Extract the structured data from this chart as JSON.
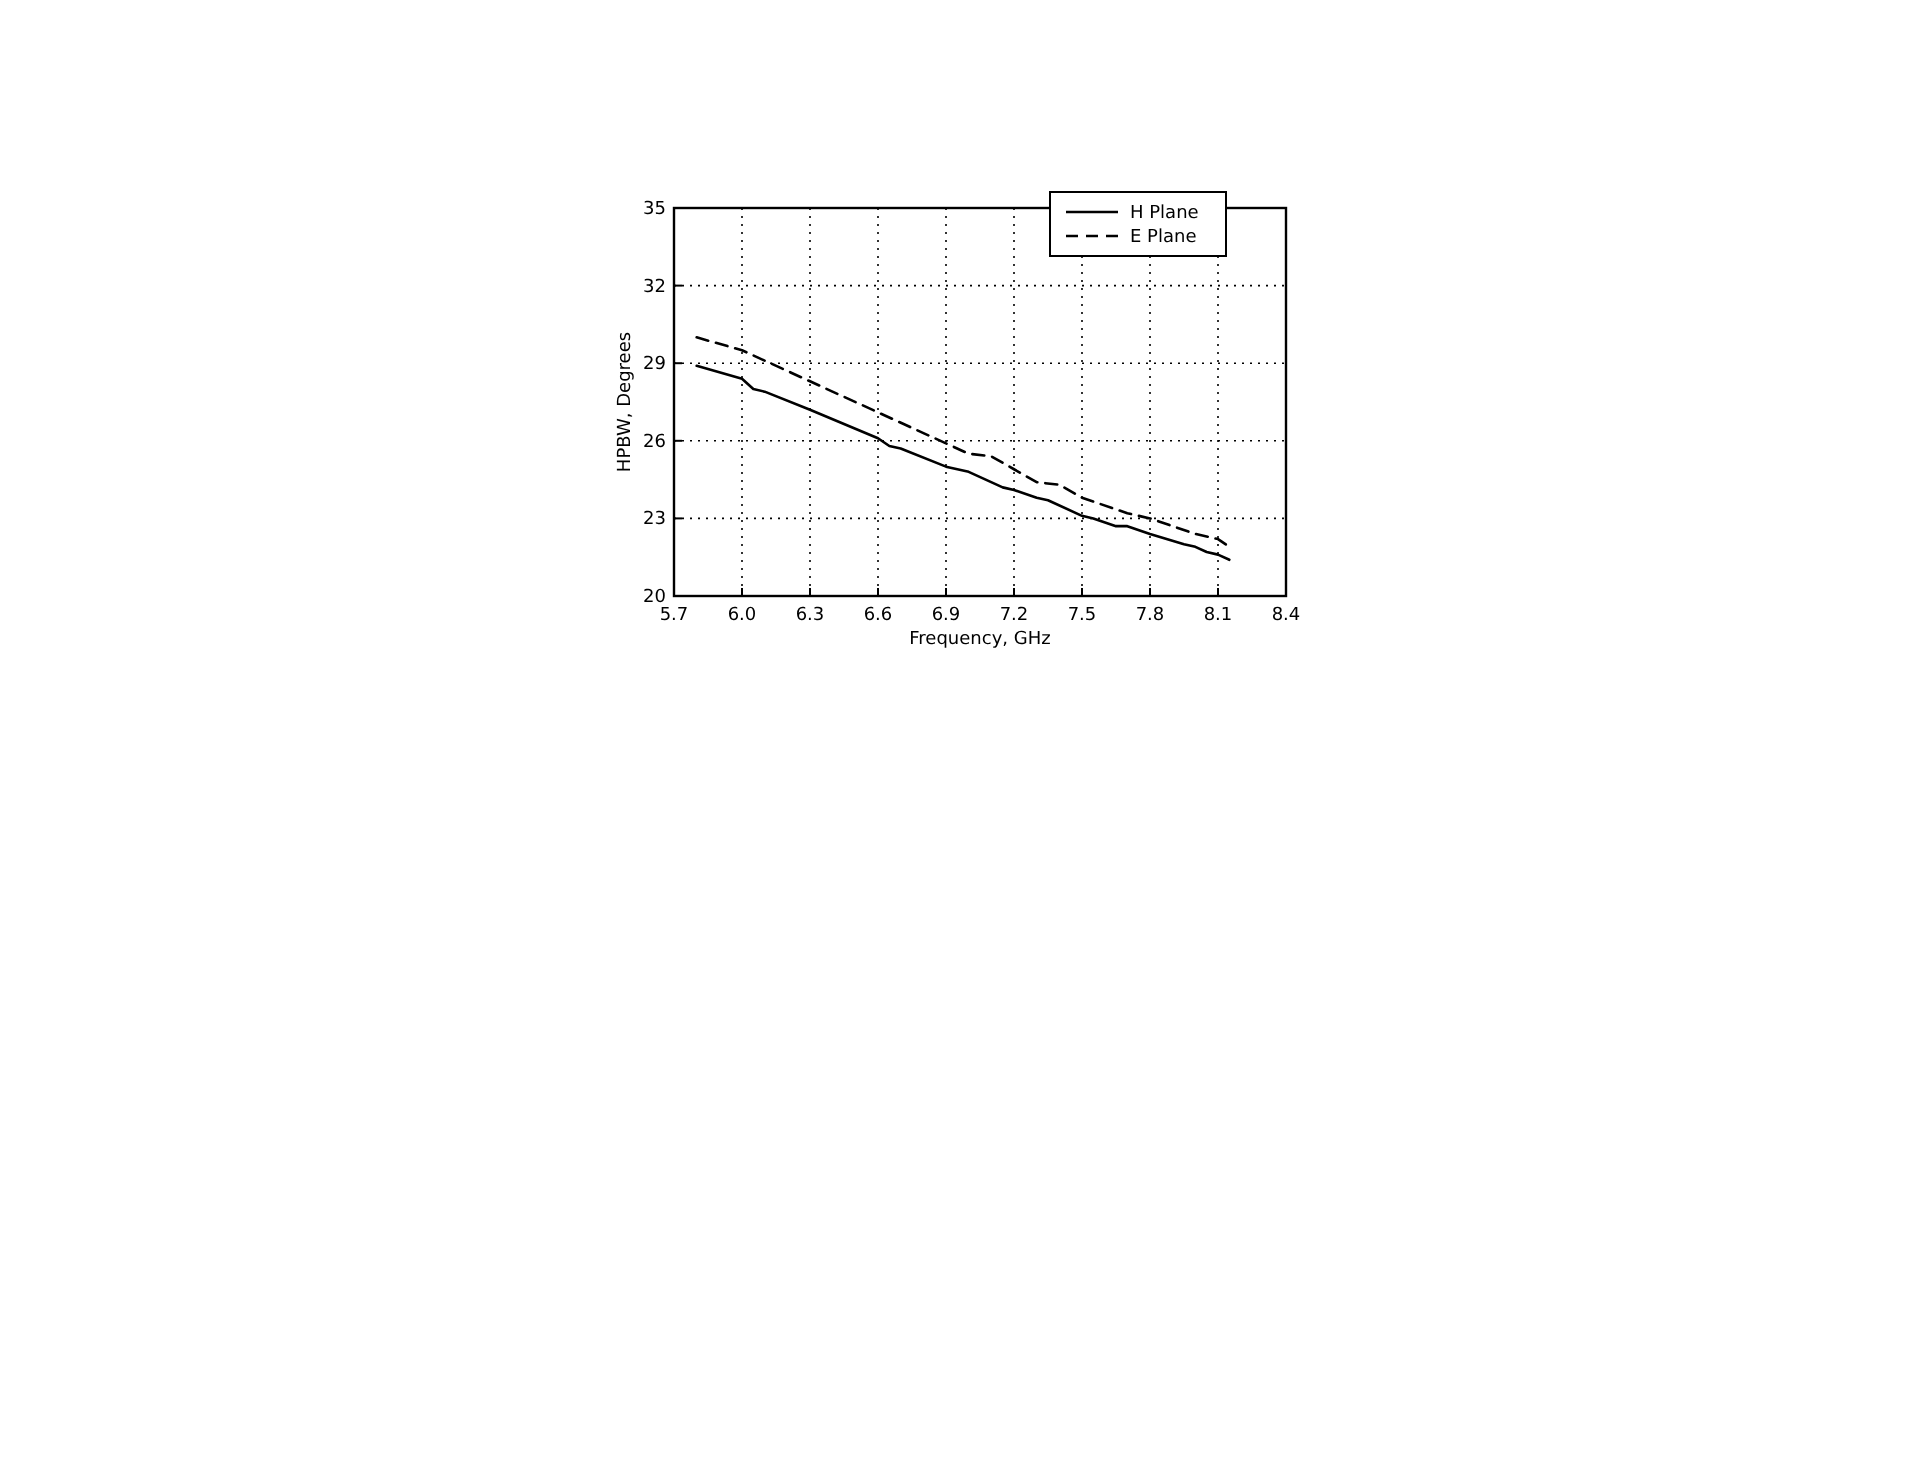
{
  "chart_data": {
    "type": "line",
    "xlabel": "Frequency, GHz",
    "ylabel": "HPBW, Degrees",
    "xlim": [
      5.7,
      8.4
    ],
    "xticks": [
      {
        "value": 5.7,
        "label": "5.7"
      },
      {
        "value": 6.0,
        "label": "6.0"
      },
      {
        "value": 6.3,
        "label": "6.3"
      },
      {
        "value": 6.6,
        "label": "6.6"
      },
      {
        "value": 6.9,
        "label": "6.9"
      },
      {
        "value": 7.2,
        "label": "7.2"
      },
      {
        "value": 7.5,
        "label": "7.5"
      },
      {
        "value": 7.8,
        "label": "7.8"
      },
      {
        "value": 8.1,
        "label": "8.1"
      },
      {
        "value": 8.4,
        "label": "8.4"
      }
    ],
    "ylim": [
      20,
      35
    ],
    "yticks": [
      20,
      23,
      26,
      29,
      32,
      35
    ],
    "grid": true,
    "legend": "top right",
    "marker": "none",
    "series": [
      {
        "name": "H Plane",
        "color": "#000000",
        "line_style": "solid",
        "x": [
          5.8,
          6.0,
          6.05,
          6.1,
          6.3,
          6.6,
          6.65,
          6.7,
          6.9,
          7.0,
          7.15,
          7.2,
          7.3,
          7.35,
          7.5,
          7.55,
          7.65,
          7.7,
          7.8,
          7.95,
          8.0,
          8.05,
          8.1,
          8.15
        ],
        "values": [
          28.9,
          28.4,
          28.0,
          27.9,
          27.2,
          26.1,
          25.8,
          25.7,
          25.0,
          24.8,
          24.2,
          24.1,
          23.8,
          23.7,
          23.1,
          23.0,
          22.7,
          22.7,
          22.4,
          22.0,
          21.9,
          21.7,
          21.6,
          21.4
        ]
      },
      {
        "name": "E Plane",
        "color": "#000000",
        "line_style": "dashed",
        "x": [
          5.8,
          6.0,
          6.3,
          6.6,
          6.9,
          7.0,
          7.1,
          7.2,
          7.3,
          7.4,
          7.5,
          7.7,
          7.8,
          8.0,
          8.1,
          8.15
        ],
        "values": [
          30.0,
          29.5,
          28.3,
          27.1,
          25.9,
          25.5,
          25.4,
          24.9,
          24.4,
          24.3,
          23.8,
          23.2,
          23.0,
          22.4,
          22.2,
          21.9
        ]
      }
    ]
  }
}
